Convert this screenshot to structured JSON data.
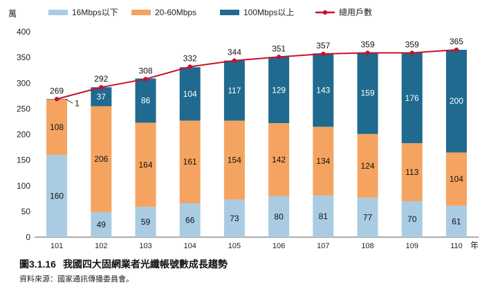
{
  "chart_data": {
    "type": "bar",
    "stacked": true,
    "title": "我國四大固網業者光纖帳號數成長趨勢",
    "figure_number": "圖3.1.16",
    "source": "資料來源：國家通訊傳播委員會。",
    "ylabel": "萬",
    "xlabel": "年",
    "ylim": [
      0,
      400
    ],
    "yticks": [
      0,
      50,
      100,
      150,
      200,
      250,
      300,
      350,
      400
    ],
    "categories": [
      "101",
      "102",
      "103",
      "104",
      "105",
      "106",
      "107",
      "108",
      "109",
      "110"
    ],
    "series": [
      {
        "name": "16Mbps以下",
        "color": "#a9cce3",
        "values": [
          160,
          49,
          59,
          66,
          73,
          80,
          81,
          77,
          70,
          61
        ]
      },
      {
        "name": "20-60Mbps",
        "color": "#f4a460",
        "values": [
          108,
          206,
          164,
          161,
          154,
          142,
          134,
          124,
          113,
          104
        ]
      },
      {
        "name": "100Mbps以上",
        "color": "#1f6a8e",
        "values": [
          1,
          37,
          86,
          104,
          117,
          129,
          143,
          159,
          176,
          200
        ]
      }
    ],
    "line": {
      "name": "總用戶數",
      "color": "#c8102e",
      "values": [
        269,
        292,
        308,
        332,
        344,
        351,
        357,
        359,
        359,
        365
      ]
    },
    "legend_position": "top",
    "grid": false
  }
}
